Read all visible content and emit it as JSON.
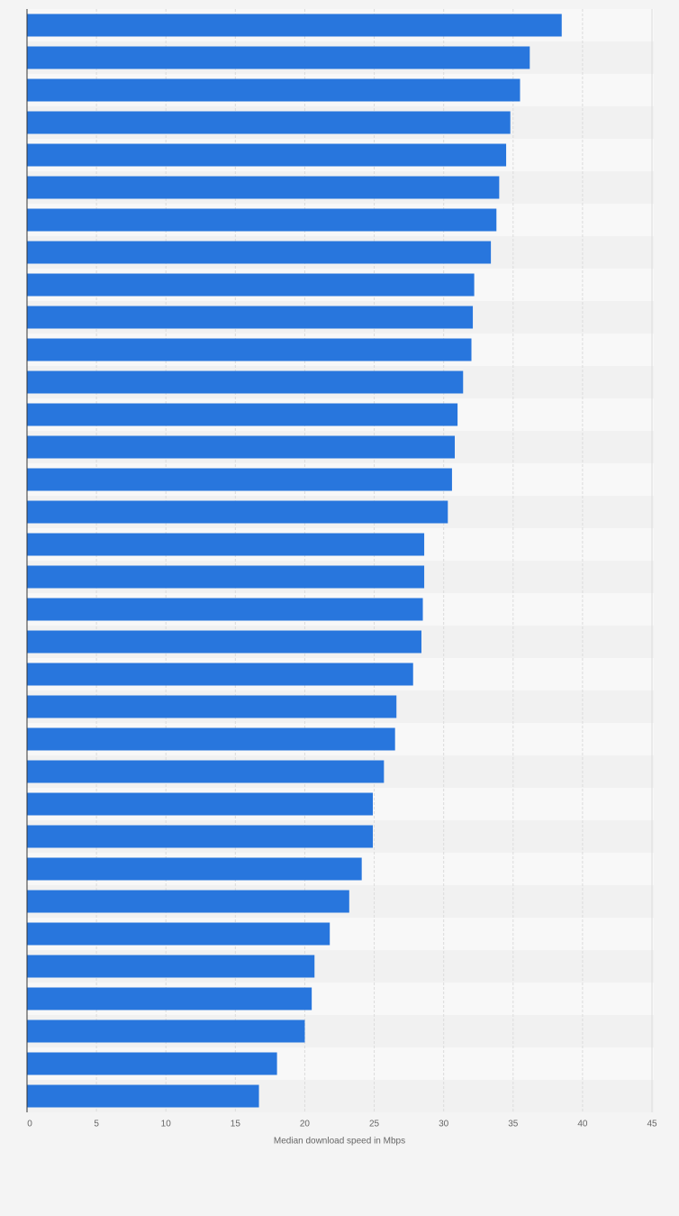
{
  "chart_data": {
    "type": "barh",
    "xlabel": "Median download speed in Mbps",
    "categories": [
      null,
      null,
      null,
      null,
      null,
      null,
      null,
      null,
      null,
      null,
      null,
      null,
      null,
      null,
      null,
      null,
      null,
      null,
      null,
      null,
      null,
      null,
      null,
      null,
      null,
      null,
      null,
      null,
      null,
      null,
      null,
      null,
      null,
      null
    ],
    "values": [
      38.5,
      36.2,
      35.5,
      34.8,
      34.5,
      34.0,
      33.8,
      33.4,
      32.2,
      32.1,
      32.0,
      31.4,
      31.0,
      30.8,
      30.6,
      30.3,
      28.6,
      28.6,
      28.5,
      28.4,
      27.8,
      26.6,
      26.5,
      25.7,
      24.9,
      24.9,
      24.1,
      23.2,
      21.8,
      20.7,
      20.5,
      20.0,
      18.0,
      16.7
    ],
    "color": "#2876dd",
    "xlim": [
      0,
      45
    ],
    "xticks": [
      0,
      5,
      10,
      15,
      20,
      25,
      30,
      35,
      40,
      45
    ],
    "grid": true
  }
}
